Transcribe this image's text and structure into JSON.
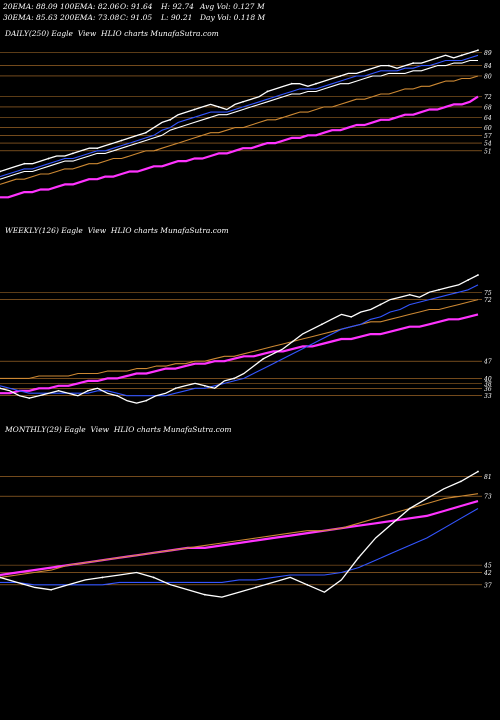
{
  "header": {
    "row1": [
      {
        "key": "ema20",
        "text": "20EMA: 88.09"
      },
      {
        "key": "ema100",
        "text": "100EMA: 82.06"
      },
      {
        "key": "open",
        "text": "O: 91.64"
      },
      {
        "key": "high",
        "text": "H: 92.74"
      },
      {
        "key": "avgvol",
        "text": "Avg Vol: 0.127 M"
      }
    ],
    "row2": [
      {
        "key": "ema30",
        "text": "30EMA: 85.63"
      },
      {
        "key": "ema200",
        "text": "200EMA: 73.08"
      },
      {
        "key": "close",
        "text": "C: 91.05"
      },
      {
        "key": "low",
        "text": "L: 90.21"
      },
      {
        "key": "dayvol",
        "text": "Day Vol: 0.118 M"
      }
    ]
  },
  "chart_data": [
    {
      "type": "line",
      "name": "daily",
      "title": "DAILY(250) Eagle  View  HLIO charts MunafaSutra.com",
      "grid": false,
      "ylim": [
        30,
        92
      ],
      "level_labels": [
        "89",
        "84",
        "80",
        "72",
        "68",
        "64",
        "60",
        "57",
        "54",
        "51"
      ],
      "series": [
        {
          "key": "price",
          "color": "#ffffff",
          "values": [
            43,
            44,
            45,
            46,
            46,
            47,
            48,
            49,
            49,
            50,
            51,
            52,
            52,
            53,
            54,
            55,
            56,
            57,
            58,
            60,
            62,
            63,
            65,
            66,
            67,
            68,
            69,
            68,
            67,
            69,
            70,
            71,
            72,
            74,
            75,
            76,
            77,
            77,
            76,
            77,
            78,
            79,
            80,
            81,
            81,
            82,
            83,
            84,
            84,
            83,
            84,
            85,
            85,
            86,
            87,
            88,
            87,
            88,
            89,
            90
          ]
        },
        {
          "key": "ema20",
          "color": "#3355ff",
          "values": [
            41,
            42,
            43,
            44,
            44,
            45,
            46,
            47,
            48,
            48,
            49,
            50,
            51,
            51,
            52,
            53,
            54,
            55,
            56,
            57,
            59,
            60,
            62,
            63,
            64,
            65,
            66,
            66,
            66,
            67,
            68,
            69,
            70,
            71,
            72,
            73,
            74,
            75,
            75,
            75,
            76,
            77,
            78,
            79,
            80,
            80,
            81,
            82,
            82,
            82,
            83,
            83,
            84,
            84,
            85,
            86,
            86,
            86,
            87,
            88
          ]
        },
        {
          "key": "ema30",
          "color": "#ffffff",
          "values": [
            40,
            41,
            42,
            43,
            43,
            44,
            45,
            46,
            47,
            47,
            48,
            49,
            50,
            50,
            51,
            52,
            53,
            54,
            55,
            56,
            57,
            59,
            60,
            61,
            62,
            63,
            64,
            65,
            65,
            66,
            67,
            68,
            69,
            70,
            71,
            72,
            73,
            73,
            74,
            74,
            75,
            76,
            77,
            77,
            78,
            79,
            80,
            80,
            81,
            81,
            81,
            82,
            82,
            83,
            84,
            84,
            85,
            85,
            86,
            86
          ]
        },
        {
          "key": "ema100",
          "color": "#cc8833",
          "values": [
            38,
            39,
            40,
            40,
            41,
            42,
            42,
            43,
            44,
            44,
            45,
            46,
            46,
            47,
            48,
            48,
            49,
            50,
            51,
            51,
            52,
            53,
            54,
            55,
            56,
            57,
            58,
            58,
            59,
            60,
            60,
            61,
            62,
            63,
            63,
            64,
            65,
            66,
            66,
            67,
            68,
            68,
            69,
            70,
            71,
            71,
            72,
            73,
            73,
            74,
            75,
            75,
            76,
            76,
            77,
            78,
            78,
            79,
            79,
            80
          ]
        },
        {
          "key": "ema200",
          "color": "#ff33ff",
          "values": [
            33,
            33,
            34,
            35,
            35,
            36,
            36,
            37,
            38,
            38,
            39,
            40,
            40,
            41,
            41,
            42,
            43,
            43,
            44,
            45,
            45,
            46,
            47,
            47,
            48,
            48,
            49,
            50,
            50,
            51,
            52,
            52,
            53,
            54,
            54,
            55,
            56,
            56,
            57,
            57,
            58,
            59,
            59,
            60,
            61,
            61,
            62,
            63,
            63,
            64,
            65,
            65,
            66,
            67,
            67,
            68,
            69,
            69,
            70,
            72
          ]
        }
      ]
    },
    {
      "type": "line",
      "name": "weekly",
      "title": "WEEKLY(126) Eagle  View  HLIO charts MunafaSutra.com",
      "grid": false,
      "ylim": [
        28,
        95
      ],
      "level_labels": [
        "75",
        "72",
        "47",
        "40",
        "38",
        "36",
        "33"
      ],
      "series": [
        {
          "key": "price",
          "color": "#ffffff",
          "values": [
            36,
            35,
            33,
            32,
            33,
            34,
            35,
            34,
            33,
            35,
            36,
            34,
            33,
            31,
            30,
            31,
            33,
            34,
            36,
            37,
            38,
            37,
            36,
            39,
            40,
            42,
            45,
            48,
            50,
            52,
            55,
            58,
            60,
            62,
            64,
            66,
            65,
            67,
            68,
            70,
            72,
            73,
            74,
            73,
            75,
            76,
            77,
            78,
            80,
            82
          ]
        },
        {
          "key": "ema20",
          "color": "#3355ff",
          "values": [
            37,
            36,
            35,
            34,
            34,
            34,
            34,
            34,
            34,
            34,
            35,
            35,
            34,
            33,
            33,
            33,
            33,
            33,
            34,
            35,
            36,
            36,
            37,
            38,
            39,
            40,
            42,
            44,
            46,
            48,
            50,
            52,
            54,
            56,
            58,
            60,
            61,
            62,
            64,
            65,
            67,
            68,
            70,
            71,
            72,
            73,
            74,
            75,
            76,
            78
          ]
        },
        {
          "key": "ema100",
          "color": "#cc8833",
          "values": [
            40,
            40,
            40,
            40,
            41,
            41,
            41,
            41,
            42,
            42,
            42,
            43,
            43,
            43,
            44,
            44,
            45,
            45,
            46,
            46,
            47,
            47,
            48,
            49,
            49,
            50,
            51,
            52,
            53,
            54,
            55,
            56,
            57,
            58,
            59,
            60,
            61,
            62,
            63,
            63,
            64,
            65,
            66,
            67,
            68,
            68,
            69,
            70,
            71,
            72
          ]
        },
        {
          "key": "ema200",
          "color": "#ff33ff",
          "values": [
            34,
            34,
            35,
            35,
            36,
            36,
            37,
            37,
            38,
            39,
            39,
            40,
            40,
            41,
            42,
            42,
            43,
            44,
            44,
            45,
            46,
            46,
            47,
            47,
            48,
            49,
            49,
            50,
            51,
            51,
            52,
            53,
            53,
            54,
            55,
            56,
            56,
            57,
            58,
            58,
            59,
            60,
            61,
            61,
            62,
            63,
            64,
            64,
            65,
            66
          ]
        }
      ]
    },
    {
      "type": "line",
      "name": "monthly",
      "title": "MONTHLY(29) Eagle  View  HLIO charts MunafaSutra.com",
      "grid": false,
      "ylim": [
        28,
        95
      ],
      "level_labels": [
        "81",
        "73",
        "45",
        "42",
        "37"
      ],
      "series": [
        {
          "key": "price",
          "color": "#ffffff",
          "values": [
            40,
            38,
            36,
            35,
            37,
            39,
            40,
            41,
            42,
            40,
            37,
            35,
            33,
            32,
            34,
            36,
            38,
            40,
            37,
            34,
            39,
            48,
            56,
            62,
            68,
            72,
            76,
            79,
            83
          ]
        },
        {
          "key": "ema20",
          "color": "#3355ff",
          "values": [
            38,
            38,
            37,
            37,
            37,
            37,
            37,
            38,
            38,
            38,
            38,
            38,
            38,
            38,
            39,
            39,
            40,
            41,
            41,
            41,
            42,
            44,
            47,
            50,
            53,
            56,
            60,
            64,
            68
          ]
        },
        {
          "key": "ema100",
          "color": "#cc8833",
          "values": [
            40,
            41,
            42,
            43,
            45,
            46,
            47,
            48,
            49,
            50,
            51,
            52,
            53,
            54,
            55,
            56,
            57,
            58,
            59,
            59,
            60,
            62,
            64,
            66,
            68,
            70,
            72,
            73,
            74
          ]
        },
        {
          "key": "ema200",
          "color": "#ff33ff",
          "values": [
            41,
            42,
            43,
            44,
            45,
            46,
            47,
            48,
            49,
            50,
            51,
            52,
            52,
            53,
            54,
            55,
            56,
            57,
            58,
            59,
            60,
            61,
            62,
            63,
            64,
            65,
            67,
            69,
            71
          ]
        }
      ]
    }
  ]
}
